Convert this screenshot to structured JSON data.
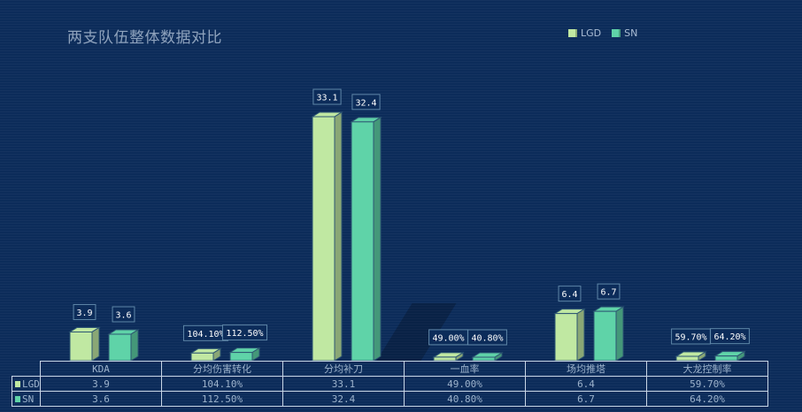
{
  "chart_data": {
    "type": "bar",
    "title": "两支队伍整体数据对比",
    "categories": [
      "KDA",
      "分均伤害转化",
      "分均补刀",
      "一血率",
      "场均推塔",
      "大龙控制率"
    ],
    "series": [
      {
        "name": "LGD",
        "color": "#c0e8a2",
        "values": [
          3.9,
          1.041,
          33.1,
          0.49,
          6.4,
          0.597
        ],
        "labels": [
          "3.9",
          "104.10%",
          "33.1",
          "49.00%",
          "6.4",
          "59.70%"
        ]
      },
      {
        "name": "SN",
        "color": "#5fd3a8",
        "values": [
          3.6,
          1.125,
          32.4,
          0.408,
          6.7,
          0.642
        ],
        "labels": [
          "3.6",
          "112.50%",
          "32.4",
          "40.80%",
          "6.7",
          "64.20%"
        ]
      }
    ],
    "ylim": [
      0,
      35
    ],
    "legend_position": "top-right",
    "grid": false,
    "data_table": true
  }
}
